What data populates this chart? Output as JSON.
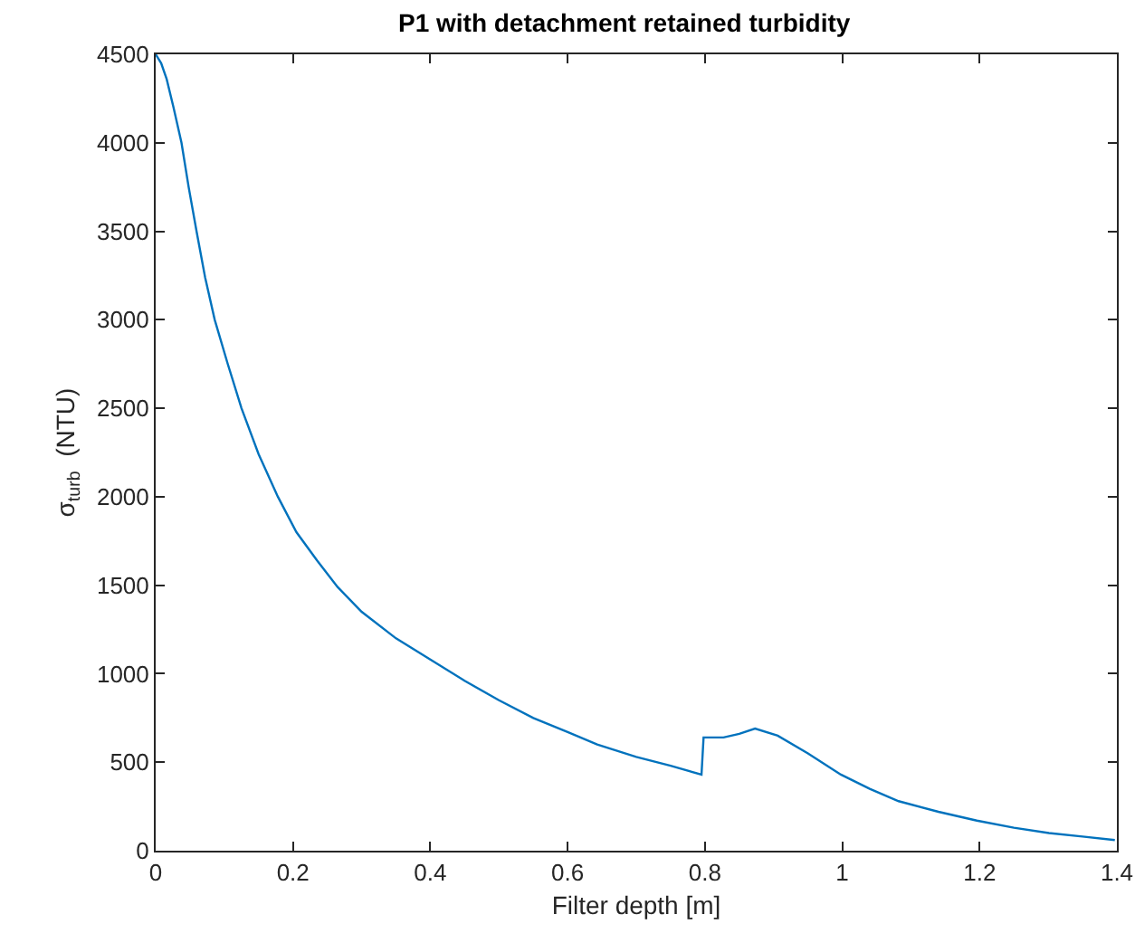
{
  "chart_data": {
    "type": "line",
    "title": "P1 with detachment retained turbidity",
    "xlabel": "Filter depth [m]",
    "ylabel": "σ$_{turb}$  (NTU)",
    "series": [
      {
        "color": "#0072bd",
        "x": [
          0,
          0.008,
          0.016,
          0.026,
          0.0376,
          0.048,
          0.0595,
          0.072,
          0.086,
          0.105,
          0.125,
          0.15,
          0.178,
          0.205,
          0.235,
          0.265,
          0.3,
          0.35,
          0.4,
          0.45,
          0.5,
          0.55,
          0.6,
          0.643,
          0.7,
          0.75,
          0.795,
          0.798,
          0.827,
          0.85,
          0.873,
          0.906,
          0.95,
          0.998,
          1.04,
          1.082,
          1.14,
          1.196,
          1.25,
          1.301,
          1.35,
          1.397
        ],
        "values": [
          4500,
          4450,
          4360,
          4200,
          4000,
          3750,
          3500,
          3240,
          3000,
          2750,
          2500,
          2240,
          2000,
          1800,
          1640,
          1490,
          1350,
          1200,
          1080,
          960,
          850,
          750,
          670,
          600,
          530,
          480,
          430,
          640,
          640,
          660,
          690,
          650,
          550,
          430,
          350,
          280,
          220,
          170,
          130,
          100,
          80,
          60
        ]
      }
    ],
    "xlim": [
      0,
      1.4
    ],
    "xticks": [
      0,
      0.2,
      0.4,
      0.6,
      0.8,
      1,
      1.2,
      1.4
    ],
    "ylim": [
      0,
      4500
    ],
    "yticks": [
      0,
      500,
      1000,
      1500,
      2000,
      2500,
      3000,
      3500,
      4000,
      4500
    ],
    "marker": "none",
    "line_style": "solid"
  }
}
